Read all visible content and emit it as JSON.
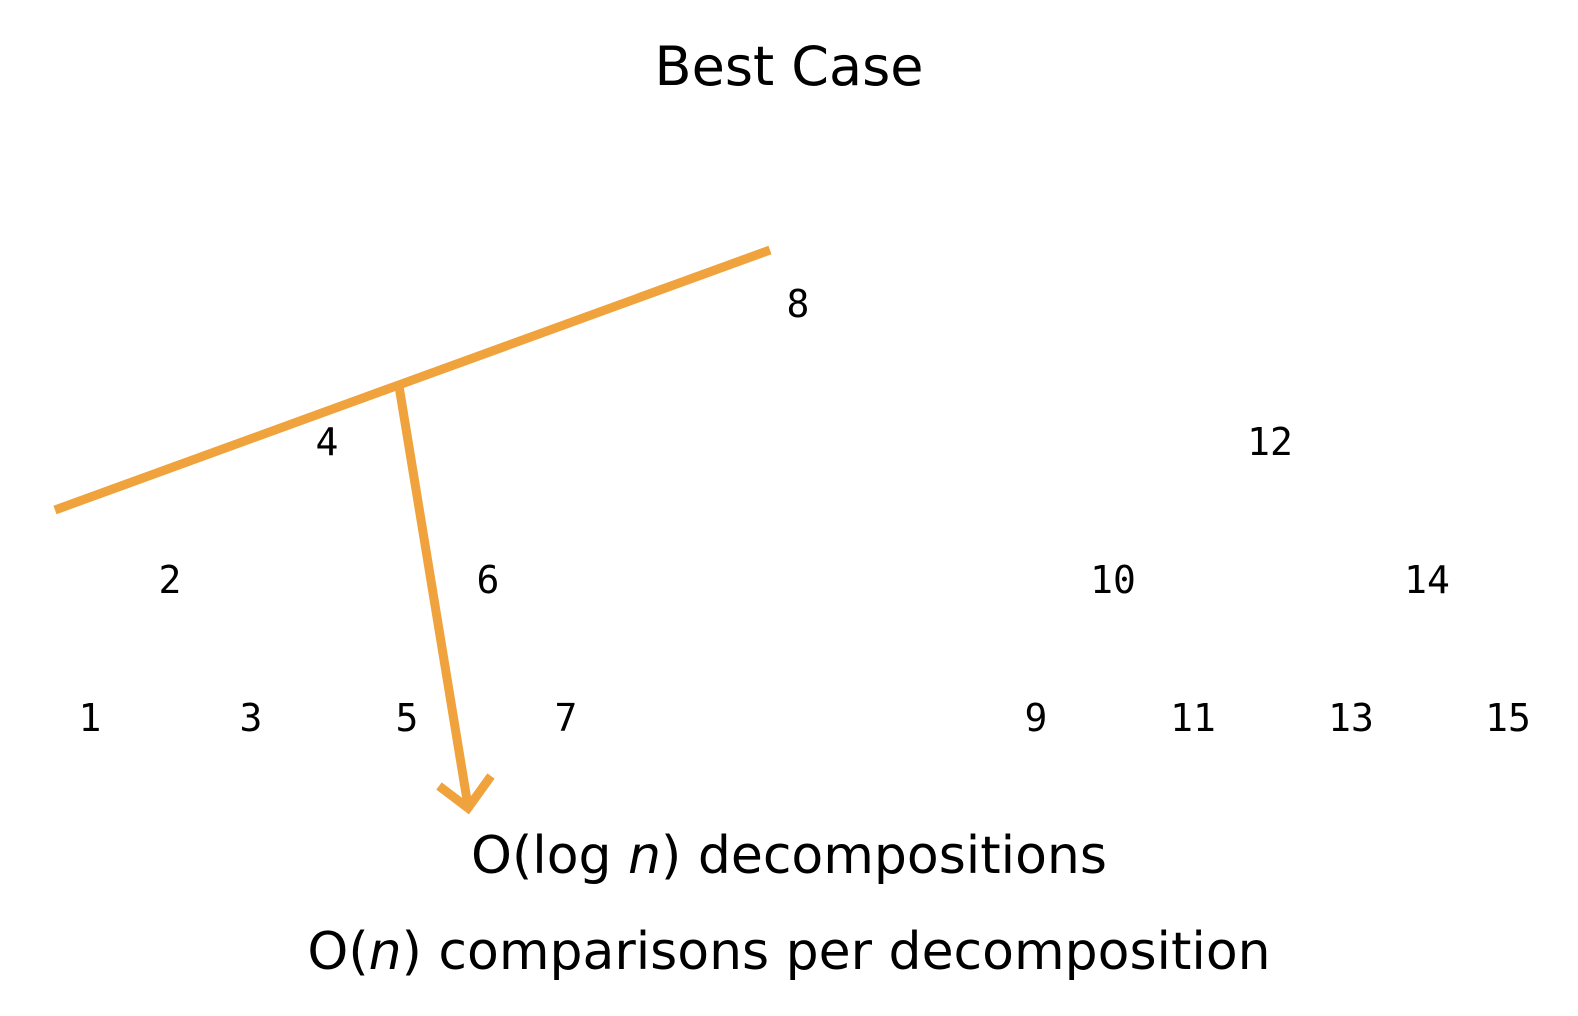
{
  "title": "Best Case",
  "tree": {
    "nodes": [
      "8",
      "4",
      "12",
      "2",
      "6",
      "10",
      "14",
      "1",
      "3",
      "5",
      "7",
      "9",
      "11",
      "13",
      "15"
    ]
  },
  "annotation": {
    "color": "#F0A23C"
  },
  "captions": {
    "line1": {
      "prefix": "O(log ",
      "var": "n",
      "suffix": ") decompositions"
    },
    "line2": {
      "prefix": "O(",
      "var": "n",
      "suffix": ") comparisons per decomposition"
    }
  }
}
